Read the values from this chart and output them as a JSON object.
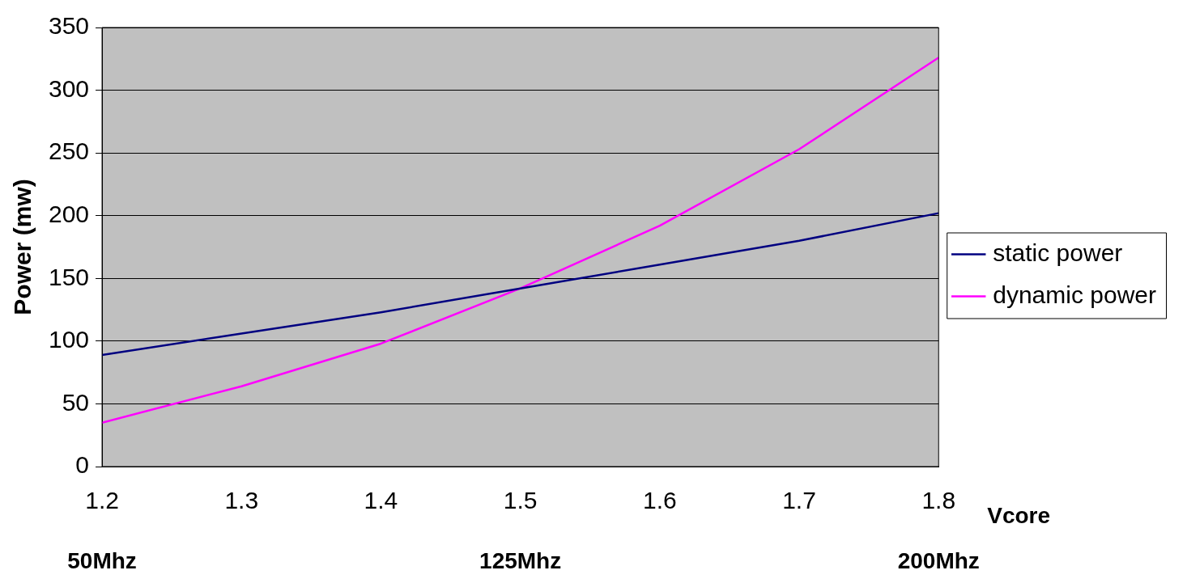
{
  "chart_data": {
    "type": "line",
    "xlabel": "Vcore",
    "ylabel": "Power (mw)",
    "x": [
      1.2,
      1.3,
      1.4,
      1.5,
      1.6,
      1.7,
      1.8
    ],
    "xlim": [
      1.2,
      1.8
    ],
    "xticks": [
      1.2,
      1.3,
      1.4,
      1.5,
      1.6,
      1.7,
      1.8
    ],
    "ylim": [
      0,
      350
    ],
    "yticks": [
      0,
      50,
      100,
      150,
      200,
      250,
      300,
      350
    ],
    "series": [
      {
        "name": "static power",
        "color": "#000080",
        "values": [
          89,
          106,
          123,
          142,
          161,
          180,
          202
        ]
      },
      {
        "name": "dynamic power",
        "color": "#ff00ff",
        "values": [
          35,
          64,
          98,
          142,
          192,
          253,
          326
        ]
      }
    ],
    "annotations": [
      "50Mhz",
      "125Mhz",
      "200Mhz"
    ],
    "grid": "y",
    "legend": "right",
    "marker": "none",
    "line_style": "solid"
  }
}
